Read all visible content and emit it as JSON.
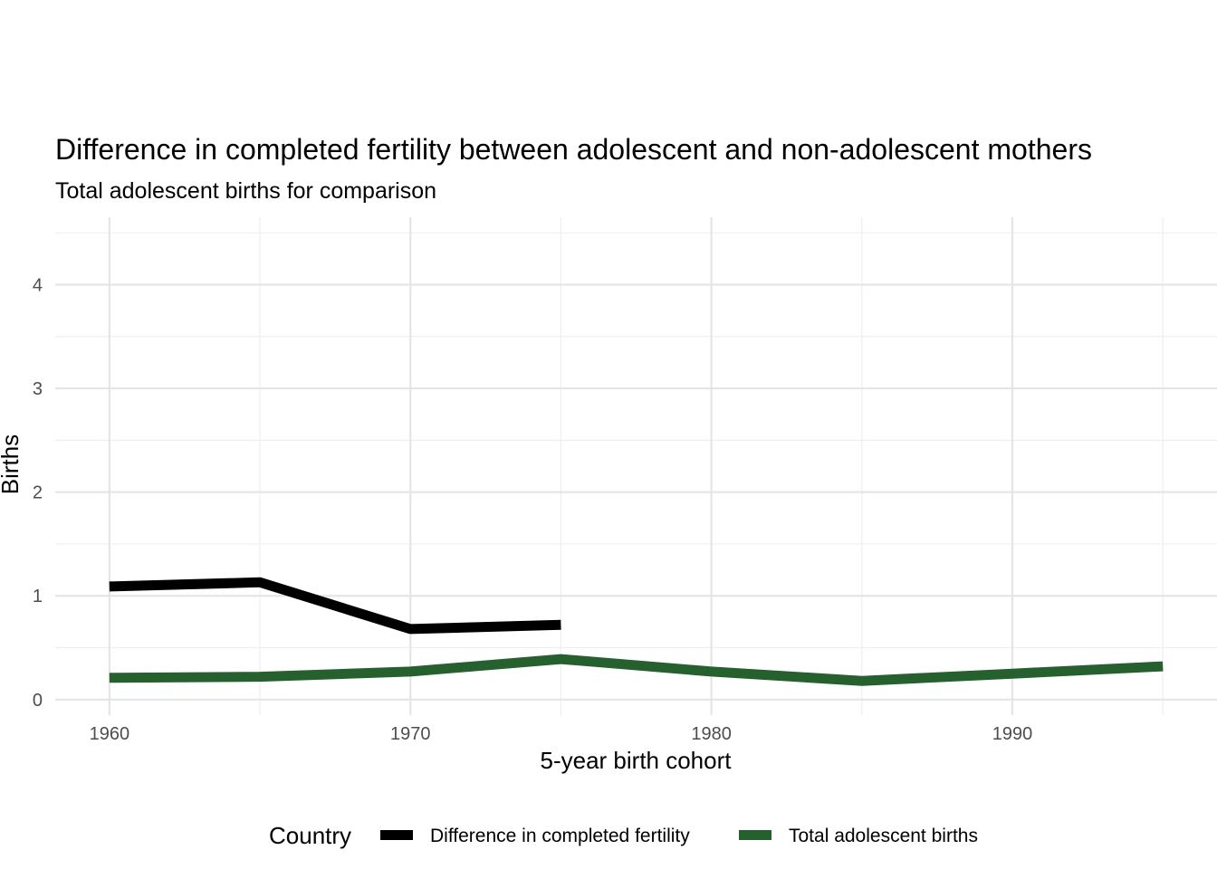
{
  "chart_data": {
    "type": "line",
    "title": "Difference in completed fertility between adolescent and non-adolescent mothers",
    "subtitle": "Total adolescent births for comparison",
    "xlabel": "5-year birth cohort",
    "ylabel": "Births",
    "xlim": [
      1958.2,
      1996.8
    ],
    "ylim": [
      -0.15,
      4.65
    ],
    "x_ticks": [
      1960,
      1970,
      1980,
      1990
    ],
    "y_ticks": [
      0,
      1,
      2,
      3,
      4
    ],
    "grid": true,
    "legend": {
      "title": "Country",
      "position": "bottom"
    },
    "series": [
      {
        "name": "Difference in completed fertility",
        "color": "#000000",
        "x": [
          1960,
          1965,
          1970,
          1975
        ],
        "y": [
          1.09,
          1.13,
          0.68,
          0.72
        ]
      },
      {
        "name": "Total adolescent births",
        "color": "#26602f",
        "x": [
          1960,
          1965,
          1970,
          1975,
          1980,
          1985,
          1990,
          1995
        ],
        "y": [
          0.21,
          0.22,
          0.27,
          0.39,
          0.27,
          0.18,
          0.25,
          0.32
        ]
      }
    ]
  }
}
